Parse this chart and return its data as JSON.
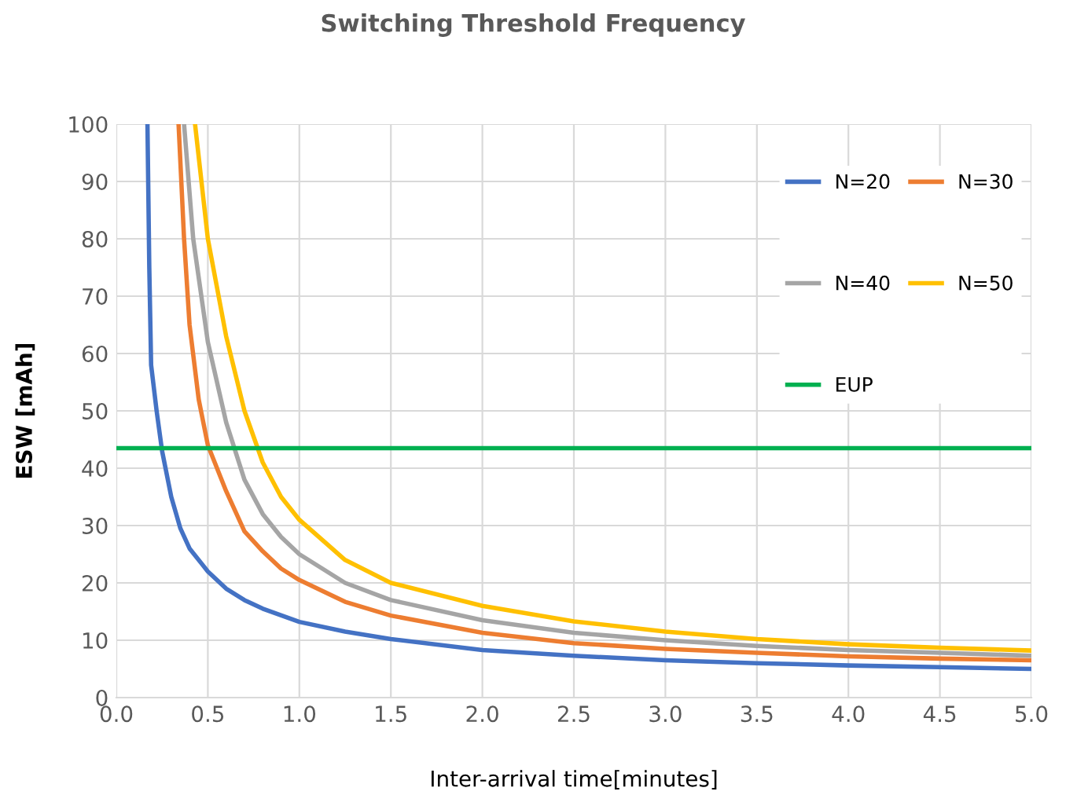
{
  "chart_data": {
    "type": "line",
    "title": "Switching Threshold Frequency",
    "xlabel": "Inter-arrival time[minutes]",
    "ylabel": "ESW [mAh]",
    "xlim": [
      0,
      5
    ],
    "xticks": [
      {
        "value": 0,
        "label": "0.0"
      },
      {
        "value": 0.5,
        "label": "0.5"
      },
      {
        "value": 1,
        "label": "1.0"
      },
      {
        "value": 1.5,
        "label": "1.5"
      },
      {
        "value": 2,
        "label": "2.0"
      },
      {
        "value": 2.5,
        "label": "2.5"
      },
      {
        "value": 3,
        "label": "3.0"
      },
      {
        "value": 3.5,
        "label": "3.5"
      },
      {
        "value": 4,
        "label": "4.0"
      },
      {
        "value": 4.5,
        "label": "4.5"
      },
      {
        "value": 5,
        "label": "5.0"
      }
    ],
    "ylim": [
      0,
      100
    ],
    "yticks": [
      0,
      10,
      20,
      30,
      40,
      50,
      60,
      70,
      80,
      90,
      100
    ],
    "grid": true,
    "legend": "right",
    "marker": "none",
    "line_style": "solid",
    "series": [
      {
        "name": "N=20",
        "color": "#4472c4",
        "x": [
          0.17,
          0.18,
          0.19,
          0.22,
          0.25,
          0.3,
          0.35,
          0.4,
          0.5,
          0.6,
          0.7,
          0.8,
          1.0,
          1.25,
          1.5,
          2.0,
          2.5,
          3.0,
          3.5,
          4.0,
          4.5,
          5.0
        ],
        "values": [
          100,
          75,
          58,
          50,
          43,
          35,
          29.5,
          26,
          22,
          19,
          17,
          15.5,
          13.2,
          11.5,
          10.2,
          8.3,
          7.3,
          6.5,
          6,
          5.6,
          5.3,
          5.0
        ]
      },
      {
        "name": "N=30",
        "color": "#ed7d31",
        "x": [
          0.34,
          0.37,
          0.4,
          0.45,
          0.5,
          0.6,
          0.7,
          0.8,
          0.9,
          1.0,
          1.25,
          1.5,
          2.0,
          2.5,
          3.0,
          3.5,
          4.0,
          4.5,
          5.0
        ],
        "values": [
          100,
          80,
          65,
          52,
          44,
          36,
          29,
          25.5,
          22.5,
          20.5,
          16.7,
          14.3,
          11.3,
          9.5,
          8.5,
          7.8,
          7.2,
          6.8,
          6.5
        ]
      },
      {
        "name": "N=40",
        "color": "#a5a5a5",
        "x": [
          0.37,
          0.42,
          0.5,
          0.6,
          0.7,
          0.8,
          0.9,
          1.0,
          1.25,
          1.5,
          2.0,
          2.5,
          3.0,
          3.5,
          4.0,
          4.5,
          5.0
        ],
        "values": [
          100,
          80,
          62,
          48,
          38,
          32,
          28,
          25,
          20,
          17,
          13.5,
          11.3,
          10,
          9,
          8.3,
          7.8,
          7.3
        ]
      },
      {
        "name": "N=50",
        "color": "#ffc000",
        "x": [
          0.43,
          0.5,
          0.6,
          0.7,
          0.8,
          0.9,
          1.0,
          1.25,
          1.5,
          2.0,
          2.5,
          3.0,
          3.5,
          4.0,
          4.5,
          5.0
        ],
        "values": [
          100,
          80,
          63,
          50,
          41,
          35,
          31,
          24,
          20,
          16,
          13.3,
          11.5,
          10.2,
          9.3,
          8.7,
          8.2
        ]
      },
      {
        "name": "EUP",
        "color": "#00b050",
        "x": [
          0,
          5
        ],
        "values": [
          43.5,
          43.5
        ]
      }
    ]
  }
}
